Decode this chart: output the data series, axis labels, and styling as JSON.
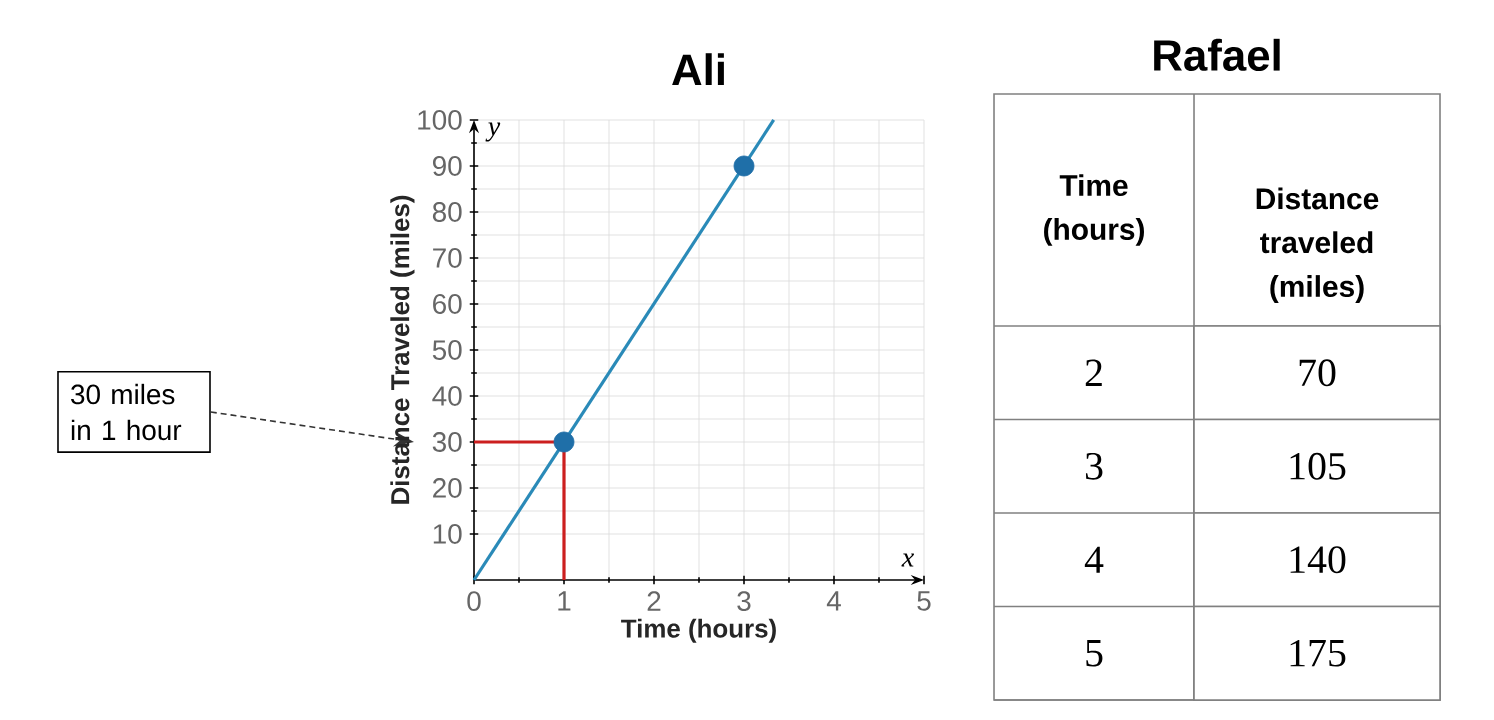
{
  "chart_data": [
    {
      "type": "line",
      "title": "Ali",
      "xlabel": "Time (hours)",
      "ylabel": "Distance Traveled (miles)",
      "xlim": [
        0,
        5
      ],
      "ylim": [
        0,
        100
      ],
      "xticks": [
        0,
        1,
        2,
        3,
        4,
        5
      ],
      "yticks": [
        10,
        20,
        30,
        40,
        50,
        60,
        70,
        80,
        90,
        100
      ],
      "grid": true,
      "series": [
        {
          "x": [
            0,
            3.33
          ],
          "values": [
            0,
            100
          ],
          "color": "#2a8ab8",
          "line_style": "solid",
          "marker": "none"
        },
        {
          "x": [
            1,
            3
          ],
          "values": [
            30,
            90
          ],
          "color": "#1f6fa8",
          "type": "scatter",
          "marker": "circle"
        },
        {
          "x": [
            0,
            1,
            1
          ],
          "values": [
            30,
            30,
            0
          ],
          "color": "#cc1f1f",
          "line_style": "solid",
          "marker": "none"
        }
      ],
      "annotations": [
        "30 miles in 1 hour",
        "x",
        "y"
      ]
    },
    {
      "type": "heatmap",
      "title": "Rafael",
      "ylabel": "Time (hours)",
      "categories": [
        "Distance traveled (miles)"
      ],
      "y_categories": [
        "2",
        "3",
        "4",
        "5"
      ],
      "cells": [
        [
          70
        ],
        [
          105
        ],
        [
          140
        ],
        [
          175
        ]
      ],
      "data_labels": true
    }
  ]
}
